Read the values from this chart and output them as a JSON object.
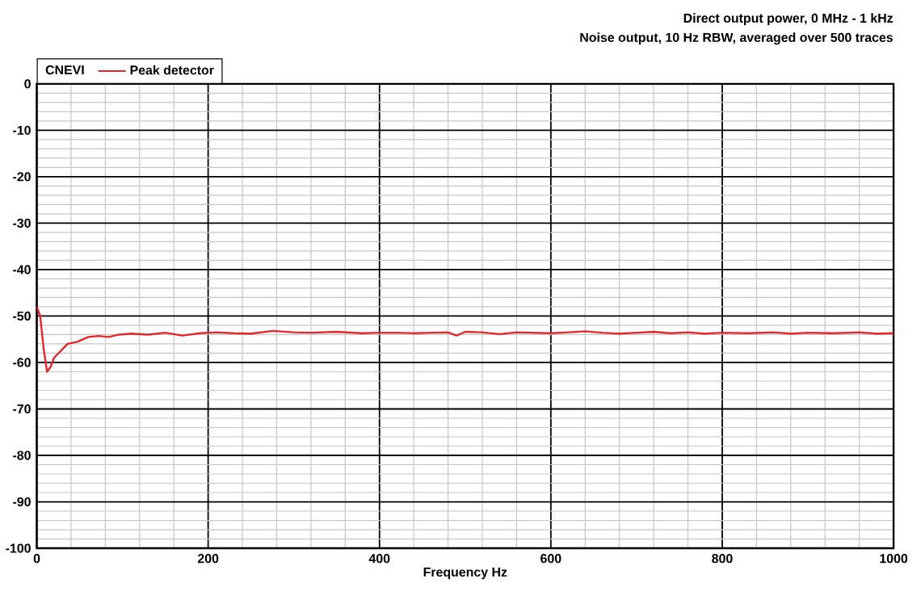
{
  "chart_data": {
    "type": "line",
    "title": "Direct output power, 0 MHz - 1 kHz",
    "subtitle": "Noise output, 10 Hz RBW, averaged over 500 traces",
    "xlabel": "Frequency  Hz",
    "legend_title": "CNEVI",
    "legend": "top left",
    "grid": true,
    "xlim": [
      0,
      1000
    ],
    "xticks": [
      0,
      200,
      400,
      600,
      800,
      1000
    ],
    "ylim": [
      -100,
      0
    ],
    "yticks": [
      -100,
      -90,
      -80,
      -70,
      -60,
      -50,
      -40,
      -30,
      -20,
      -10,
      0
    ],
    "series": [
      {
        "name": "Peak detector",
        "color": "#e8262a",
        "x": [
          0,
          4,
          8,
          12,
          16,
          20,
          28,
          36,
          48,
          60,
          72,
          84,
          96,
          110,
          130,
          150,
          170,
          190,
          210,
          230,
          250,
          275,
          300,
          320,
          350,
          380,
          400,
          420,
          440,
          460,
          480,
          490,
          500,
          520,
          540,
          560,
          600,
          620,
          640,
          660,
          680,
          700,
          720,
          740,
          760,
          780,
          800,
          830,
          860,
          880,
          900,
          930,
          960,
          980,
          1000
        ],
        "values": [
          -48,
          -50,
          -57,
          -62,
          -61,
          -59,
          -57.5,
          -56,
          -55.5,
          -54.5,
          -54.3,
          -54.5,
          -54,
          -53.8,
          -54,
          -53.6,
          -54.2,
          -53.7,
          -53.5,
          -53.7,
          -53.8,
          -53.2,
          -53.5,
          -53.6,
          -53.4,
          -53.7,
          -53.6,
          -53.6,
          -53.7,
          -53.6,
          -53.5,
          -54.2,
          -53.4,
          -53.5,
          -53.9,
          -53.5,
          -53.7,
          -53.5,
          -53.3,
          -53.6,
          -53.8,
          -53.6,
          -53.4,
          -53.7,
          -53.5,
          -53.8,
          -53.6,
          -53.7,
          -53.5,
          -53.8,
          -53.6,
          -53.7,
          -53.5,
          -53.8,
          -53.7
        ]
      }
    ]
  }
}
